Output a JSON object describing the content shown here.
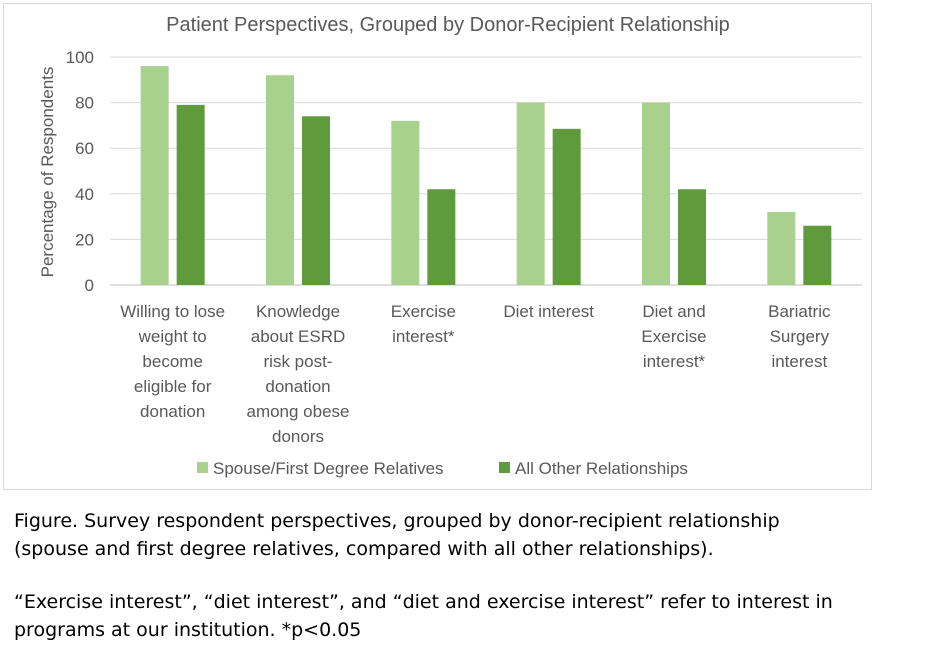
{
  "chart_data": {
    "type": "bar",
    "title": "Patient Perspectives, Grouped by Donor-Recipient Relationship",
    "xlabel": "",
    "ylabel": "Percentage of Respondents",
    "ylim": [
      0,
      100
    ],
    "yticks": [
      "0",
      "20",
      "40",
      "60",
      "80",
      "100"
    ],
    "grid": true,
    "legend_position": "bottom",
    "categories": [
      [
        "Willing to lose",
        "weight to",
        "become",
        "eligible for",
        "donation"
      ],
      [
        "Knowledge",
        "about ESRD",
        "risk post-",
        "donation",
        "among obese",
        "donors"
      ],
      [
        "Exercise",
        "interest*"
      ],
      [
        "Diet interest"
      ],
      [
        "Diet and",
        "Exercise",
        "interest*"
      ],
      [
        "Bariatric",
        "Surgery",
        "interest"
      ]
    ],
    "series": [
      {
        "name": "Spouse/First Degree Relatives",
        "color": "#a9d18e",
        "values": [
          96,
          92,
          72,
          80,
          80,
          32
        ]
      },
      {
        "name": "All Other Relationships",
        "color": "#5f9b3c",
        "values": [
          79,
          74,
          42,
          68.5,
          42,
          26
        ]
      }
    ]
  },
  "caption": {
    "line1": "Figure. Survey respondent perspectives, grouped by donor-recipient relationship",
    "line2": "(spouse and first degree relatives, compared with all other relationships).",
    "line3": "“Exercise interest”, “diet interest”, and “diet and exercise interest” refer to interest in",
    "line4": "programs at our institution.  *p<0.05"
  }
}
